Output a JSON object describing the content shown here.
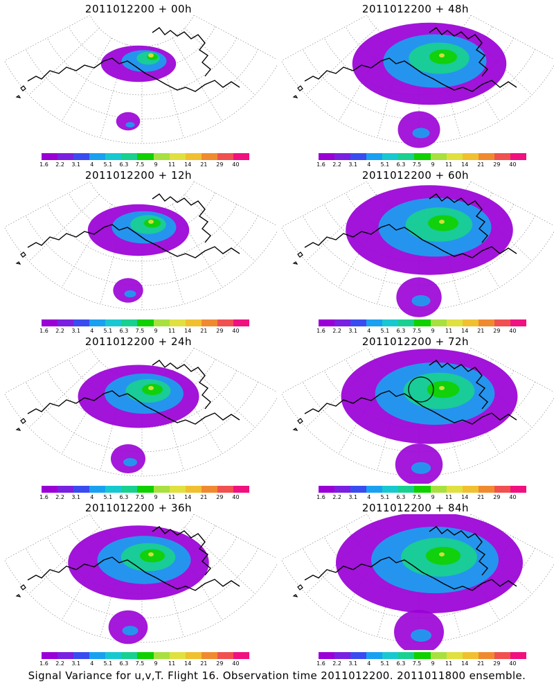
{
  "panels": [
    {
      "title": "2011012200 + 00h",
      "col": 0,
      "row": 0,
      "level": 0.15,
      "circle": false
    },
    {
      "title": "2011012200 + 12h",
      "col": 0,
      "row": 1,
      "level": 0.35,
      "circle": false
    },
    {
      "title": "2011012200 + 24h",
      "col": 0,
      "row": 2,
      "level": 0.5,
      "circle": false
    },
    {
      "title": "2011012200 + 36h",
      "col": 0,
      "row": 3,
      "level": 0.65,
      "circle": false
    },
    {
      "title": "2011012200 + 48h",
      "col": 1,
      "row": 0,
      "level": 0.75,
      "circle": false
    },
    {
      "title": "2011012200 + 60h",
      "col": 1,
      "row": 1,
      "level": 0.85,
      "circle": false
    },
    {
      "title": "2011012200 + 72h",
      "col": 1,
      "row": 2,
      "level": 0.92,
      "circle": true
    },
    {
      "title": "2011012200 + 84h",
      "col": 1,
      "row": 3,
      "level": 1.0,
      "circle": false
    }
  ],
  "colorbar": {
    "colors": [
      "#9a00d6",
      "#7a20e0",
      "#3a4cf0",
      "#1aa0f0",
      "#18c8d0",
      "#18d090",
      "#10d000",
      "#a8e040",
      "#e0e040",
      "#f0c030",
      "#f08a30",
      "#f05050",
      "#f01080"
    ],
    "ticks": [
      "1.6",
      "2.2",
      "3.1",
      "4",
      "5.1",
      "6.3",
      "7.5",
      "9",
      "11",
      "14",
      "21",
      "29",
      "40"
    ]
  },
  "footer": "Signal Variance for u,v,T. Flight 16. Observation time 2011012200. 2011011800 ensemble."
}
